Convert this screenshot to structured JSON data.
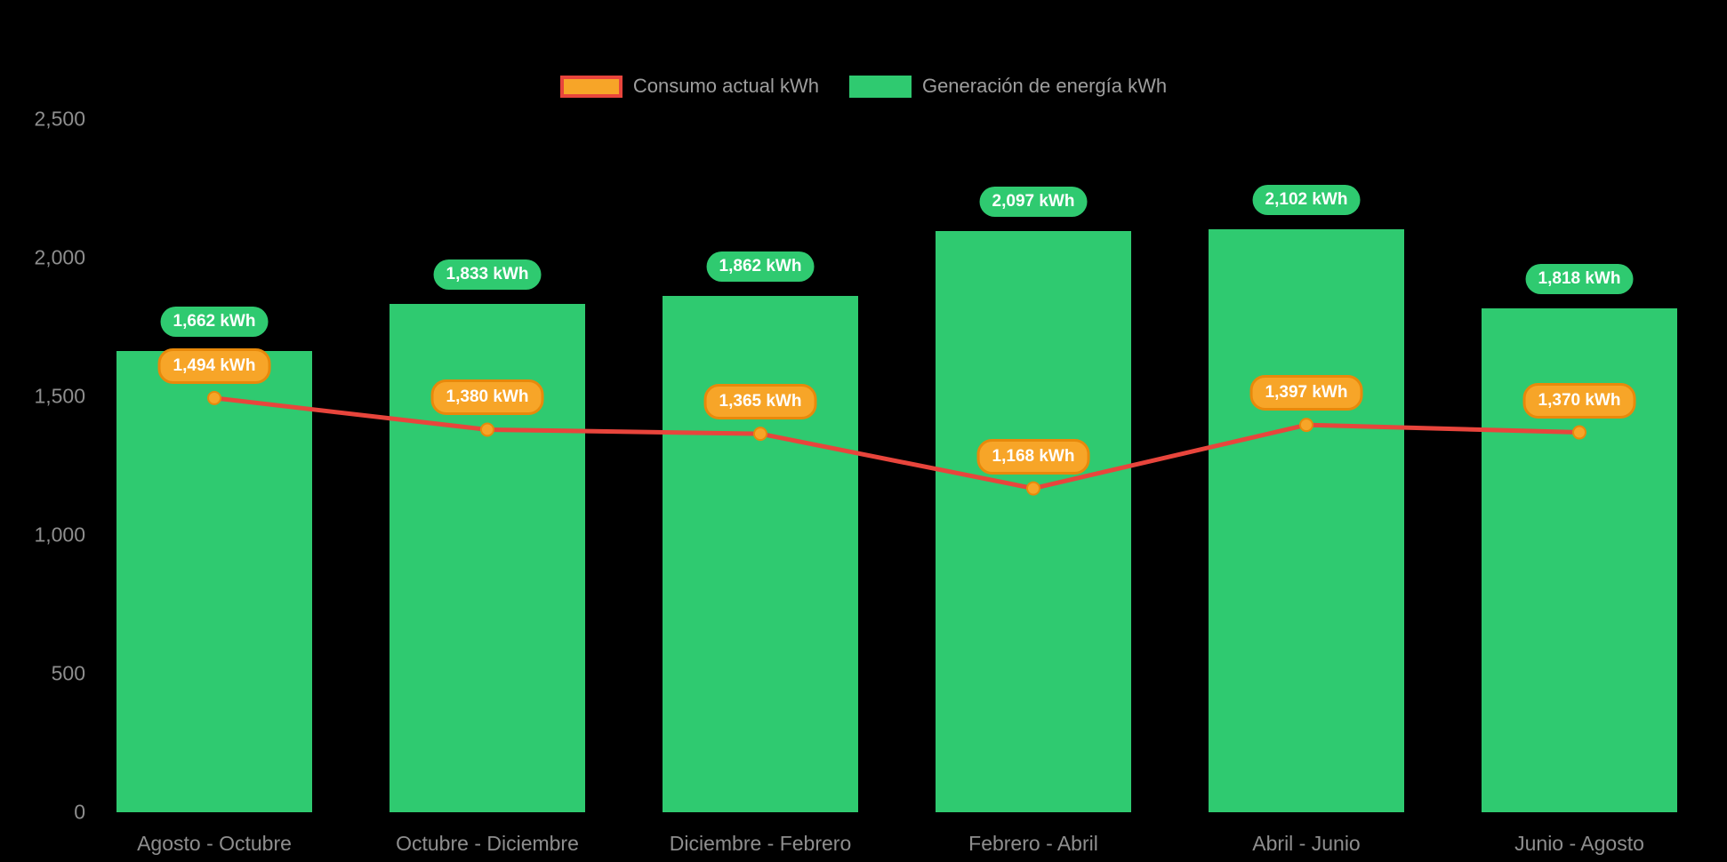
{
  "chart_data": {
    "type": "bar",
    "subtype": "bar-with-line-overlay",
    "title": "",
    "xlabel": "",
    "ylabel": "",
    "background": "#000000",
    "grid": false,
    "legend_position": "top-center",
    "categories": [
      "Agosto - Octubre",
      "Octubre - Diciembre",
      "Diciembre - Febrero",
      "Febrero - Abril",
      "Abril - Junio",
      "Junio - Agosto"
    ],
    "series": [
      {
        "name": "Consumo actual kWh",
        "type": "line",
        "color": "#e8453c",
        "marker_color": "#f7a528",
        "marker_border_color": "#e8890b",
        "values": [
          1494,
          1380,
          1365,
          1168,
          1397,
          1370
        ],
        "labels": [
          "1,494 kWh",
          "1,380 kWh",
          "1,365 kWh",
          "1,168 kWh",
          "1,397 kWh",
          "1,370 kWh"
        ]
      },
      {
        "name": "Generación de energía kWh",
        "type": "bar",
        "color": "#2fca70",
        "values": [
          1662,
          1833,
          1862,
          2097,
          2102,
          1818
        ],
        "labels": [
          "1,662 kWh",
          "1,833 kWh",
          "1,862 kWh",
          "2,097 kWh",
          "2,102 kWh",
          "1,818 kWh"
        ]
      }
    ],
    "ylim": [
      0,
      2500
    ],
    "yticks": [
      0,
      500,
      1000,
      1500,
      2000,
      2500
    ],
    "ytick_labels": [
      "0",
      "500",
      "1,000",
      "1,500",
      "2,000",
      "2,500"
    ]
  }
}
